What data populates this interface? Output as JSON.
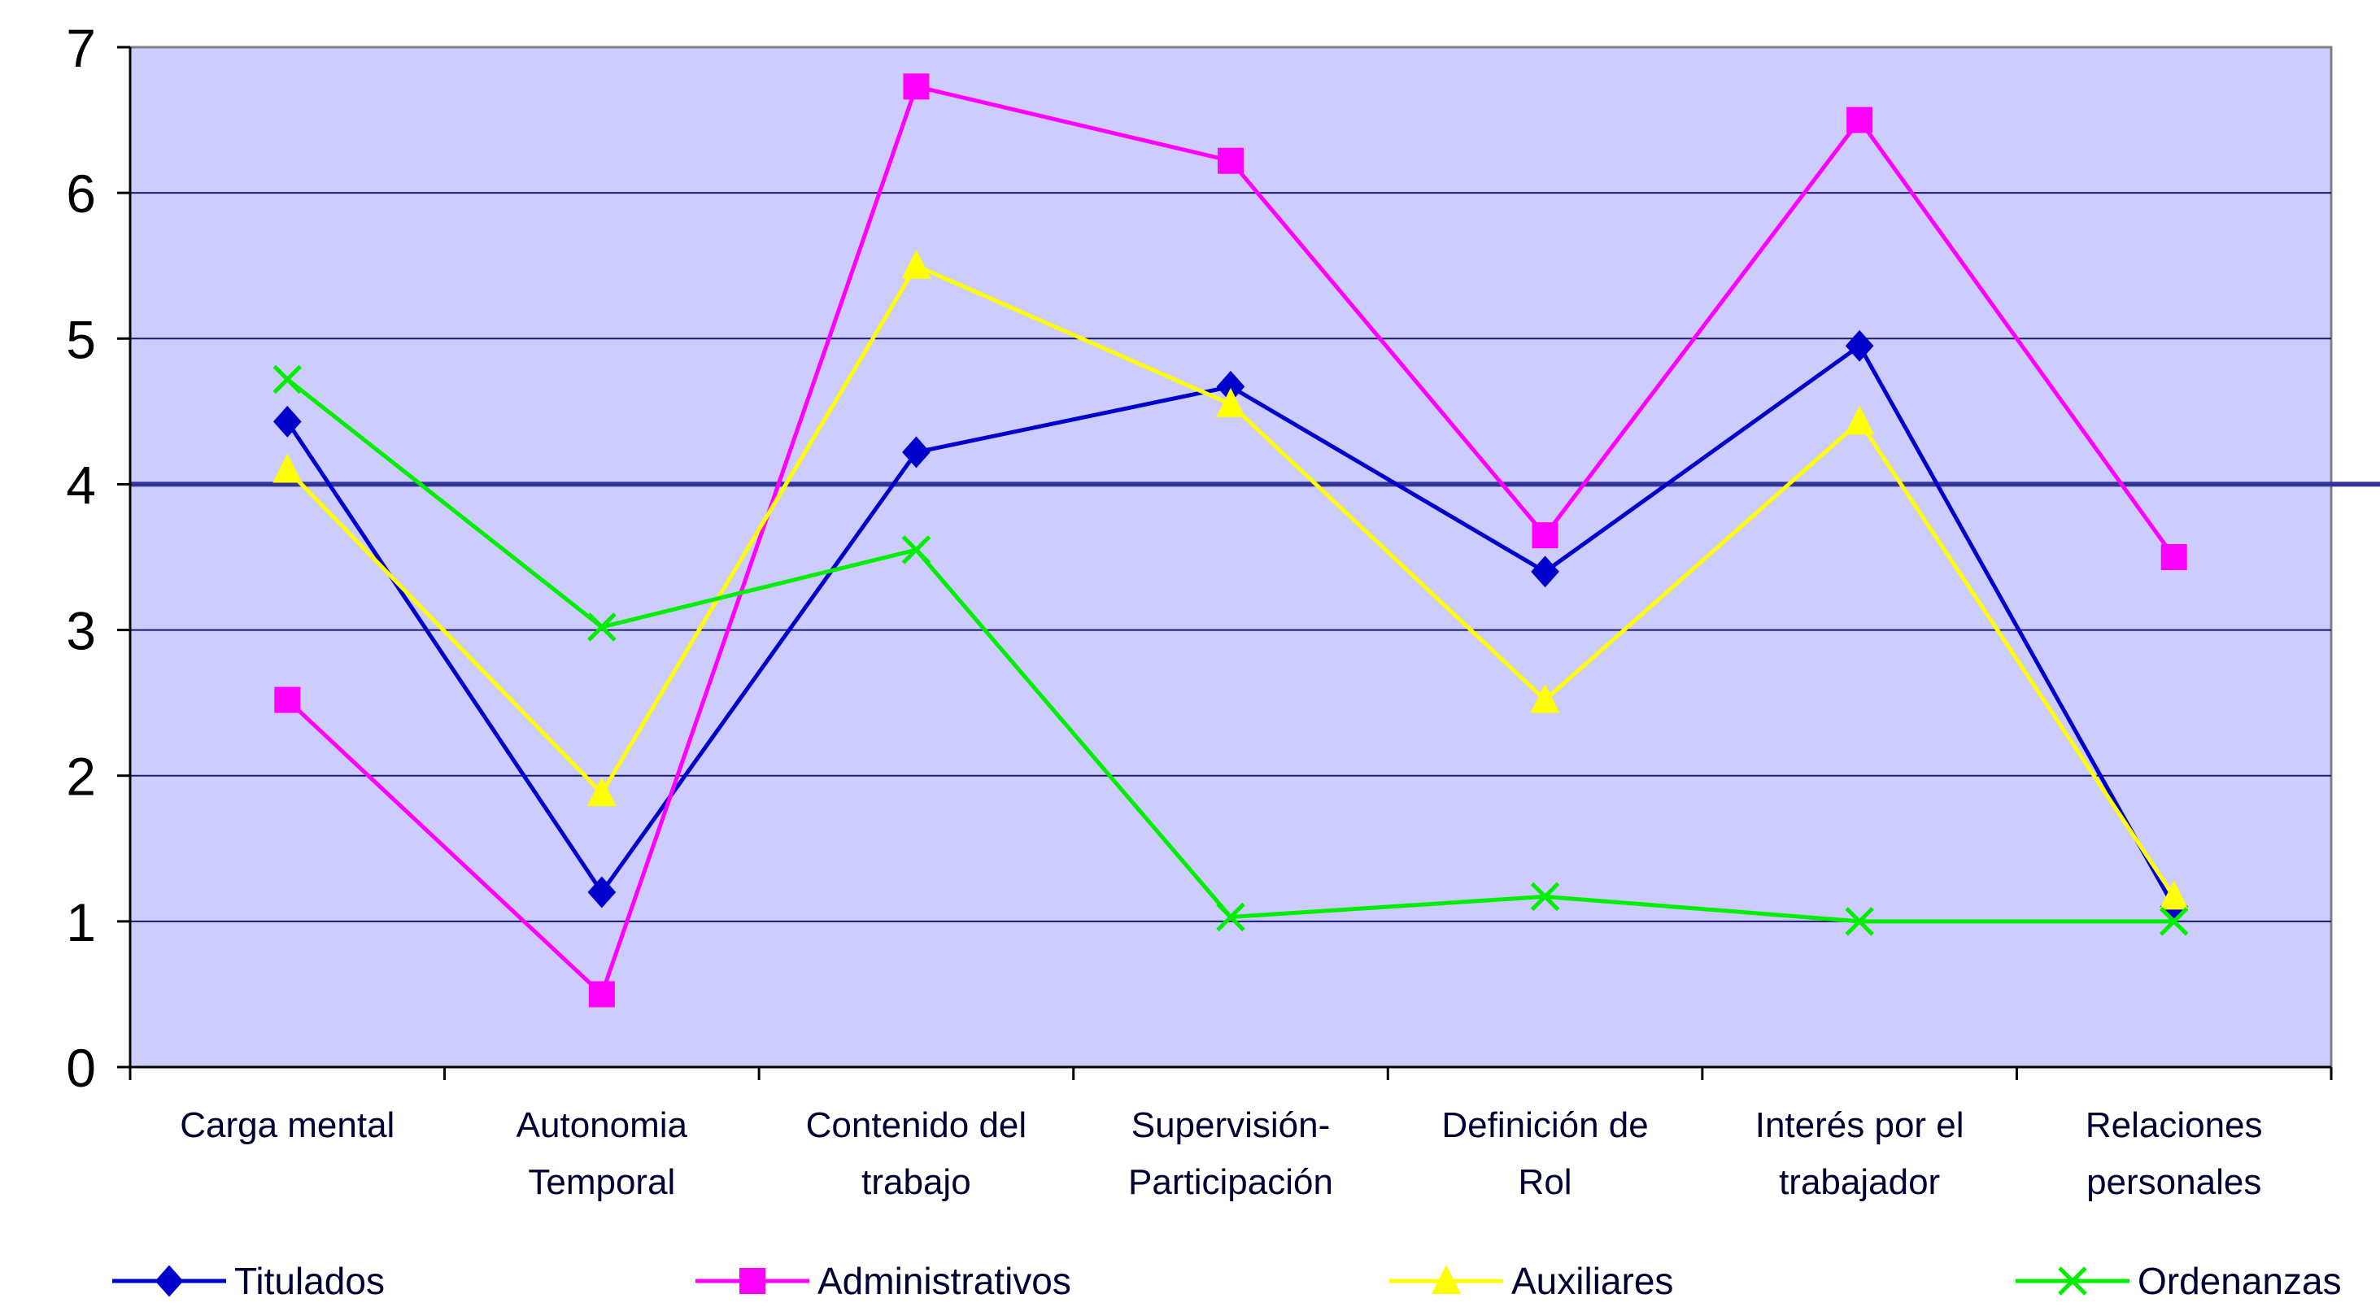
{
  "chart_data": {
    "type": "line",
    "title": "",
    "xlabel": "",
    "ylabel": "",
    "ylim": [
      0,
      7
    ],
    "yticks": [
      "0",
      "1",
      "2",
      "3",
      "4",
      "5",
      "6",
      "7"
    ],
    "grid": true,
    "reference_line": 4,
    "legend_position": "bottom",
    "plot_background": "#ccccff",
    "categories": [
      [
        "Carga mental"
      ],
      [
        "Autonomia",
        "Temporal"
      ],
      [
        "Contenido del",
        "trabajo"
      ],
      [
        "Supervisión-",
        "Participación"
      ],
      [
        "Definición de",
        "Rol"
      ],
      [
        "Interés por el",
        "trabajador"
      ],
      [
        "Relaciones",
        "personales"
      ]
    ],
    "series": [
      {
        "name": "Titulados",
        "color": "#0000cc",
        "marker": "diamond",
        "values": [
          4.43,
          1.2,
          4.22,
          4.67,
          3.4,
          4.95,
          1.1
        ]
      },
      {
        "name": "Administrativos",
        "color": "#ff00ff",
        "marker": "square",
        "values": [
          2.52,
          0.5,
          6.73,
          6.22,
          3.65,
          6.5,
          3.5
        ]
      },
      {
        "name": "Auxiliares",
        "color": "#ffff00",
        "marker": "triangle",
        "values": [
          4.1,
          1.88,
          5.5,
          4.55,
          2.52,
          4.43,
          1.17
        ]
      },
      {
        "name": "Ordenanzas",
        "color": "#00ee00",
        "marker": "x",
        "values": [
          4.72,
          3.02,
          3.55,
          1.03,
          1.17,
          1.0,
          1.0
        ]
      }
    ]
  }
}
